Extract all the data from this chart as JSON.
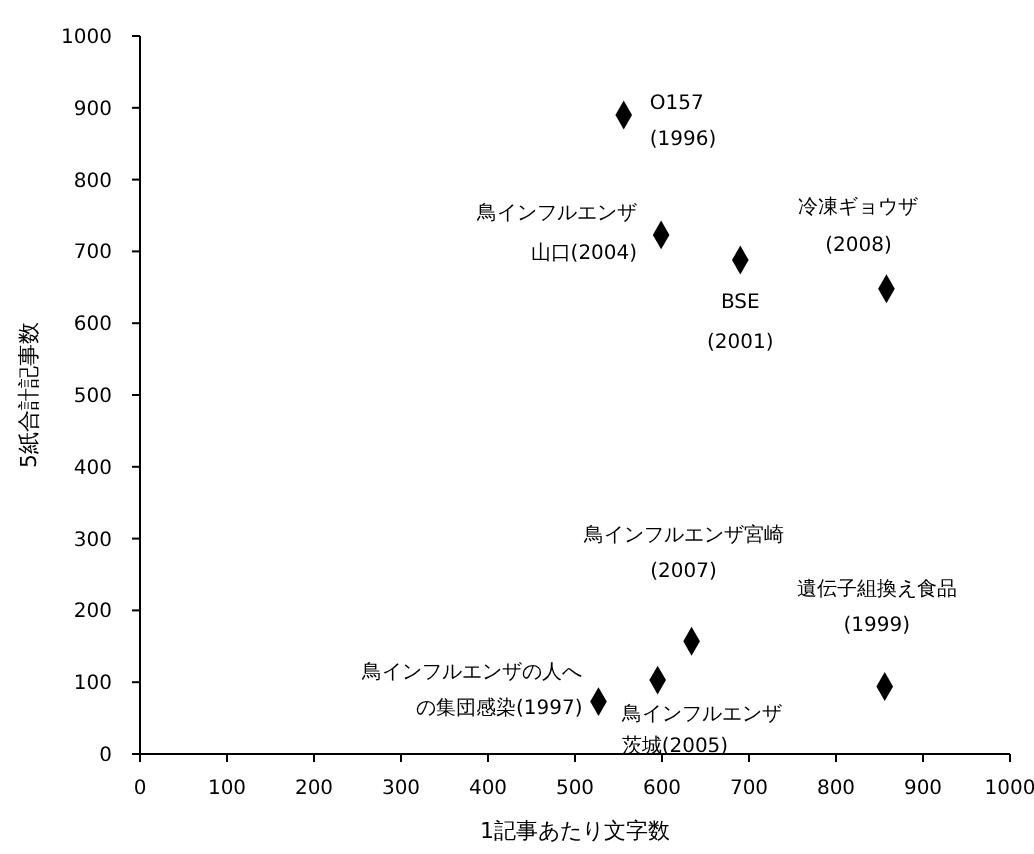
{
  "chart_data": {
    "type": "scatter",
    "xlabel": "1記事あたり文字数",
    "ylabel": "5紙合計記事数",
    "x": [
      556,
      599,
      690,
      858,
      634,
      856,
      527,
      595
    ],
    "values": [
      890,
      723,
      688,
      648,
      157,
      94,
      73,
      103
    ],
    "color": "#000000",
    "marker": "diamond",
    "xlim": [
      0,
      1000
    ],
    "ylim": [
      0,
      1000
    ],
    "xticks": [
      0,
      100,
      200,
      300,
      400,
      500,
      600,
      700,
      800,
      900,
      1000
    ],
    "yticks": [
      0,
      100,
      200,
      300,
      400,
      500,
      600,
      700,
      800,
      900,
      1000
    ],
    "grid": false,
    "annotations": [
      {
        "text": "O157\n(1996)",
        "x": 556,
        "y": 890
      },
      {
        "text": "鳥インフルエンザ山口(2004)",
        "x": 599,
        "y": 723
      },
      {
        "text": "BSE\n(2001)",
        "x": 690,
        "y": 688
      },
      {
        "text": "冷凍ギョウザ\n(2008)",
        "x": 858,
        "y": 648
      },
      {
        "text": "鳥インフルエンザ宮崎\n(2007)",
        "x": 634,
        "y": 157
      },
      {
        "text": "遺伝子組換え食品\n(1999)",
        "x": 856,
        "y": 94
      },
      {
        "text": "鳥インフルエンザの人への集団感染(1997)",
        "x": 527,
        "y": 73
      },
      {
        "text": "鳥インフルエンザ茨城(2005)",
        "x": 595,
        "y": 103
      }
    ]
  }
}
